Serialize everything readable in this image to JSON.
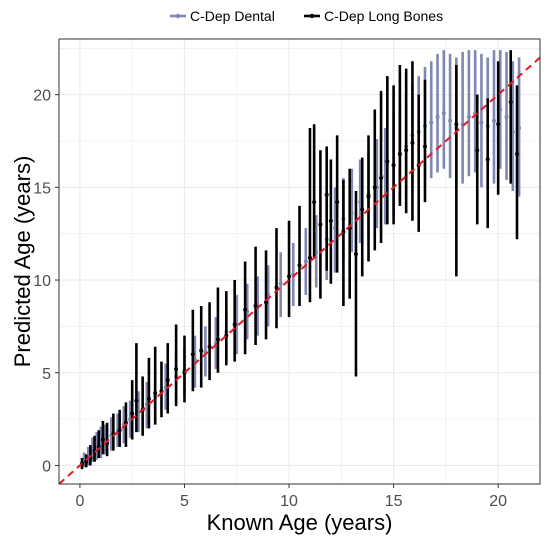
{
  "chart_data": {
    "type": "scatter",
    "xlabel": "Known Age (years)",
    "ylabel": "Predicted Age (years)",
    "xlim": [
      -1,
      22
    ],
    "ylim": [
      -1,
      23
    ],
    "x_ticks": [
      0,
      5,
      10,
      15,
      20
    ],
    "y_ticks": [
      0,
      5,
      10,
      15,
      20
    ],
    "grid": true,
    "legend_position": "top",
    "reference_line": {
      "style": "dashed",
      "color": "#e41a1c",
      "slope": 1,
      "intercept": 0
    },
    "series": [
      {
        "name": "C-Dep Dental",
        "color": "#7f87b2",
        "points": [
          [
            0.2,
            0.3,
            -0.1,
            0.7
          ],
          [
            0.4,
            0.5,
            0.0,
            1.0
          ],
          [
            0.6,
            0.8,
            0.2,
            1.5
          ],
          [
            0.8,
            1.0,
            0.3,
            1.8
          ],
          [
            1.0,
            1.2,
            0.4,
            2.1
          ],
          [
            1.2,
            1.3,
            0.6,
            2.2
          ],
          [
            1.5,
            1.6,
            0.8,
            2.6
          ],
          [
            1.8,
            1.8,
            1.0,
            2.8
          ],
          [
            2.1,
            2.2,
            1.2,
            3.2
          ],
          [
            2.4,
            2.5,
            1.5,
            3.5
          ],
          [
            2.8,
            2.9,
            1.8,
            4.0
          ],
          [
            3.2,
            3.3,
            2.0,
            4.5
          ],
          [
            3.6,
            3.7,
            2.5,
            4.9
          ],
          [
            4.1,
            4.2,
            3.0,
            5.5
          ],
          [
            4.6,
            4.8,
            3.4,
            6.0
          ],
          [
            5.0,
            5.1,
            3.8,
            6.3
          ],
          [
            5.5,
            5.7,
            4.2,
            7.0
          ],
          [
            6.0,
            6.1,
            4.8,
            7.5
          ],
          [
            6.5,
            6.6,
            5.2,
            8.0
          ],
          [
            7.0,
            7.2,
            5.6,
            8.6
          ],
          [
            7.5,
            7.6,
            6.0,
            9.2
          ],
          [
            8.0,
            8.3,
            6.8,
            9.8
          ],
          [
            8.5,
            8.6,
            7.0,
            10.2
          ],
          [
            9.0,
            9.2,
            7.5,
            10.8
          ],
          [
            9.6,
            9.8,
            8.0,
            11.5
          ],
          [
            10.2,
            10.3,
            8.6,
            12.0
          ],
          [
            10.8,
            11.0,
            9.2,
            12.8
          ],
          [
            11.3,
            11.5,
            9.6,
            13.5
          ],
          [
            11.8,
            12.2,
            10.0,
            14.2
          ],
          [
            12.2,
            12.8,
            10.4,
            15.0
          ],
          [
            12.6,
            13.3,
            11.0,
            15.5
          ],
          [
            13.0,
            13.6,
            11.5,
            16.0
          ],
          [
            13.4,
            14.2,
            12.0,
            16.5
          ],
          [
            13.8,
            14.6,
            12.2,
            17.0
          ],
          [
            14.2,
            15.0,
            12.8,
            17.6
          ],
          [
            14.6,
            15.6,
            13.0,
            18.2
          ],
          [
            15.0,
            16.2,
            13.5,
            19.0
          ],
          [
            15.3,
            16.8,
            14.0,
            19.6
          ],
          [
            15.6,
            17.2,
            14.5,
            20.0
          ],
          [
            15.9,
            17.8,
            15.0,
            20.5
          ],
          [
            16.2,
            18.0,
            15.2,
            21.0
          ],
          [
            16.5,
            18.3,
            15.5,
            21.5
          ],
          [
            16.8,
            18.5,
            15.5,
            21.8
          ],
          [
            17.1,
            18.8,
            15.8,
            22.2
          ],
          [
            17.4,
            19.0,
            16.0,
            22.4
          ],
          [
            17.7,
            18.6,
            15.5,
            22.2
          ],
          [
            18.0,
            18.2,
            15.0,
            22.0
          ],
          [
            18.3,
            18.4,
            15.2,
            22.3
          ],
          [
            18.6,
            18.8,
            15.6,
            22.4
          ],
          [
            18.9,
            19.0,
            15.8,
            22.4
          ],
          [
            19.2,
            18.5,
            15.0,
            22.2
          ],
          [
            19.5,
            18.3,
            14.8,
            22.0
          ],
          [
            19.8,
            18.6,
            15.2,
            22.4
          ],
          [
            20.1,
            19.2,
            16.0,
            22.4
          ],
          [
            20.4,
            18.8,
            15.4,
            22.3
          ],
          [
            20.7,
            18.0,
            14.8,
            21.8
          ],
          [
            21.0,
            18.2,
            14.5,
            22.0
          ]
        ]
      },
      {
        "name": "C-Dep Long Bones",
        "color": "#000000",
        "points": [
          [
            0.1,
            0.1,
            -0.2,
            0.4
          ],
          [
            0.3,
            0.2,
            -0.1,
            0.6
          ],
          [
            0.5,
            0.4,
            0.0,
            1.1
          ],
          [
            0.7,
            0.8,
            0.2,
            1.6
          ],
          [
            0.9,
            1.0,
            0.4,
            1.9
          ],
          [
            1.1,
            1.4,
            0.6,
            2.4
          ],
          [
            1.3,
            1.2,
            0.5,
            2.3
          ],
          [
            1.6,
            1.7,
            0.8,
            2.8
          ],
          [
            1.9,
            1.9,
            1.0,
            3.0
          ],
          [
            2.2,
            2.3,
            1.0,
            3.4
          ],
          [
            2.5,
            2.8,
            1.4,
            4.6
          ],
          [
            2.7,
            3.5,
            1.8,
            6.6
          ],
          [
            3.0,
            3.0,
            1.6,
            4.8
          ],
          [
            3.3,
            3.6,
            2.0,
            5.8
          ],
          [
            3.6,
            3.9,
            2.2,
            6.4
          ],
          [
            3.9,
            4.0,
            2.6,
            5.6
          ],
          [
            4.2,
            4.6,
            2.8,
            6.6
          ],
          [
            4.6,
            5.2,
            3.2,
            7.6
          ],
          [
            5.0,
            5.0,
            3.4,
            7.0
          ],
          [
            5.4,
            6.0,
            4.0,
            8.4
          ],
          [
            5.8,
            6.2,
            4.2,
            8.6
          ],
          [
            6.2,
            6.4,
            4.6,
            8.8
          ],
          [
            6.6,
            6.8,
            5.0,
            9.6
          ],
          [
            7.0,
            7.0,
            5.4,
            9.4
          ],
          [
            7.4,
            7.6,
            5.6,
            10.0
          ],
          [
            7.9,
            8.4,
            6.0,
            11.0
          ],
          [
            8.4,
            8.6,
            6.5,
            11.8
          ],
          [
            8.9,
            8.8,
            6.8,
            11.6
          ],
          [
            9.4,
            9.6,
            7.4,
            12.8
          ],
          [
            10.0,
            10.2,
            8.0,
            13.2
          ],
          [
            10.5,
            10.8,
            8.6,
            14.0
          ],
          [
            11.0,
            11.2,
            8.8,
            18.2
          ],
          [
            11.2,
            14.2,
            11.2,
            18.4
          ],
          [
            11.5,
            13.0,
            9.0,
            17.0
          ],
          [
            11.8,
            14.6,
            10.5,
            17.2
          ],
          [
            12.0,
            13.2,
            9.8,
            16.5
          ],
          [
            12.3,
            14.2,
            10.4,
            17.8
          ],
          [
            12.6,
            12.6,
            8.6,
            15.4
          ],
          [
            12.9,
            12.8,
            9.0,
            16.0
          ],
          [
            13.2,
            11.4,
            4.8,
            14.8
          ],
          [
            13.5,
            13.8,
            10.2,
            16.6
          ],
          [
            13.8,
            14.5,
            11.0,
            17.8
          ],
          [
            14.1,
            15.0,
            11.6,
            19.2
          ],
          [
            14.4,
            15.5,
            12.0,
            20.2
          ],
          [
            14.7,
            16.4,
            13.0,
            21.0
          ],
          [
            15.0,
            16.2,
            13.0,
            20.5
          ],
          [
            15.3,
            16.8,
            14.0,
            21.6
          ],
          [
            15.6,
            17.0,
            13.6,
            21.4
          ],
          [
            15.9,
            17.4,
            13.2,
            21.8
          ],
          [
            16.2,
            16.2,
            12.6,
            20.0
          ],
          [
            16.5,
            17.2,
            14.2,
            20.8
          ],
          [
            18.0,
            18.4,
            10.2,
            21.6
          ],
          [
            19.0,
            17.0,
            13.0,
            20.0
          ],
          [
            19.5,
            16.5,
            12.8,
            19.8
          ],
          [
            20.0,
            18.4,
            14.6,
            21.8
          ],
          [
            20.6,
            19.6,
            15.2,
            22.4
          ],
          [
            20.9,
            16.8,
            12.2,
            20.5
          ]
        ]
      }
    ]
  }
}
